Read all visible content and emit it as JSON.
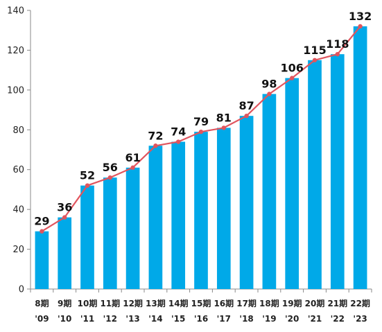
{
  "chart_data": {
    "type": "bar",
    "categories": [
      "8期",
      "9期",
      "10期",
      "11期",
      "12期",
      "13期",
      "14期",
      "15期",
      "16期",
      "17期",
      "18期",
      "19期",
      "20期",
      "21期",
      "22期"
    ],
    "categories_year": [
      "'09",
      "'10",
      "'11",
      "'12",
      "'13",
      "'14",
      "'15",
      "'16",
      "'17",
      "'18",
      "'19",
      "'20",
      "'21",
      "'22",
      "'23"
    ],
    "values": [
      29,
      36,
      52,
      56,
      61,
      72,
      74,
      79,
      81,
      87,
      98,
      106,
      115,
      118,
      132
    ],
    "overlay": "line",
    "ylim": [
      0,
      140
    ],
    "yticks": [
      0,
      20,
      40,
      60,
      80,
      100,
      120,
      140
    ],
    "grid": false,
    "title": "",
    "xlabel": "",
    "ylabel": ""
  },
  "colors": {
    "bar": "#00a9e8",
    "line": "#e0555e",
    "axis": "#888888"
  }
}
